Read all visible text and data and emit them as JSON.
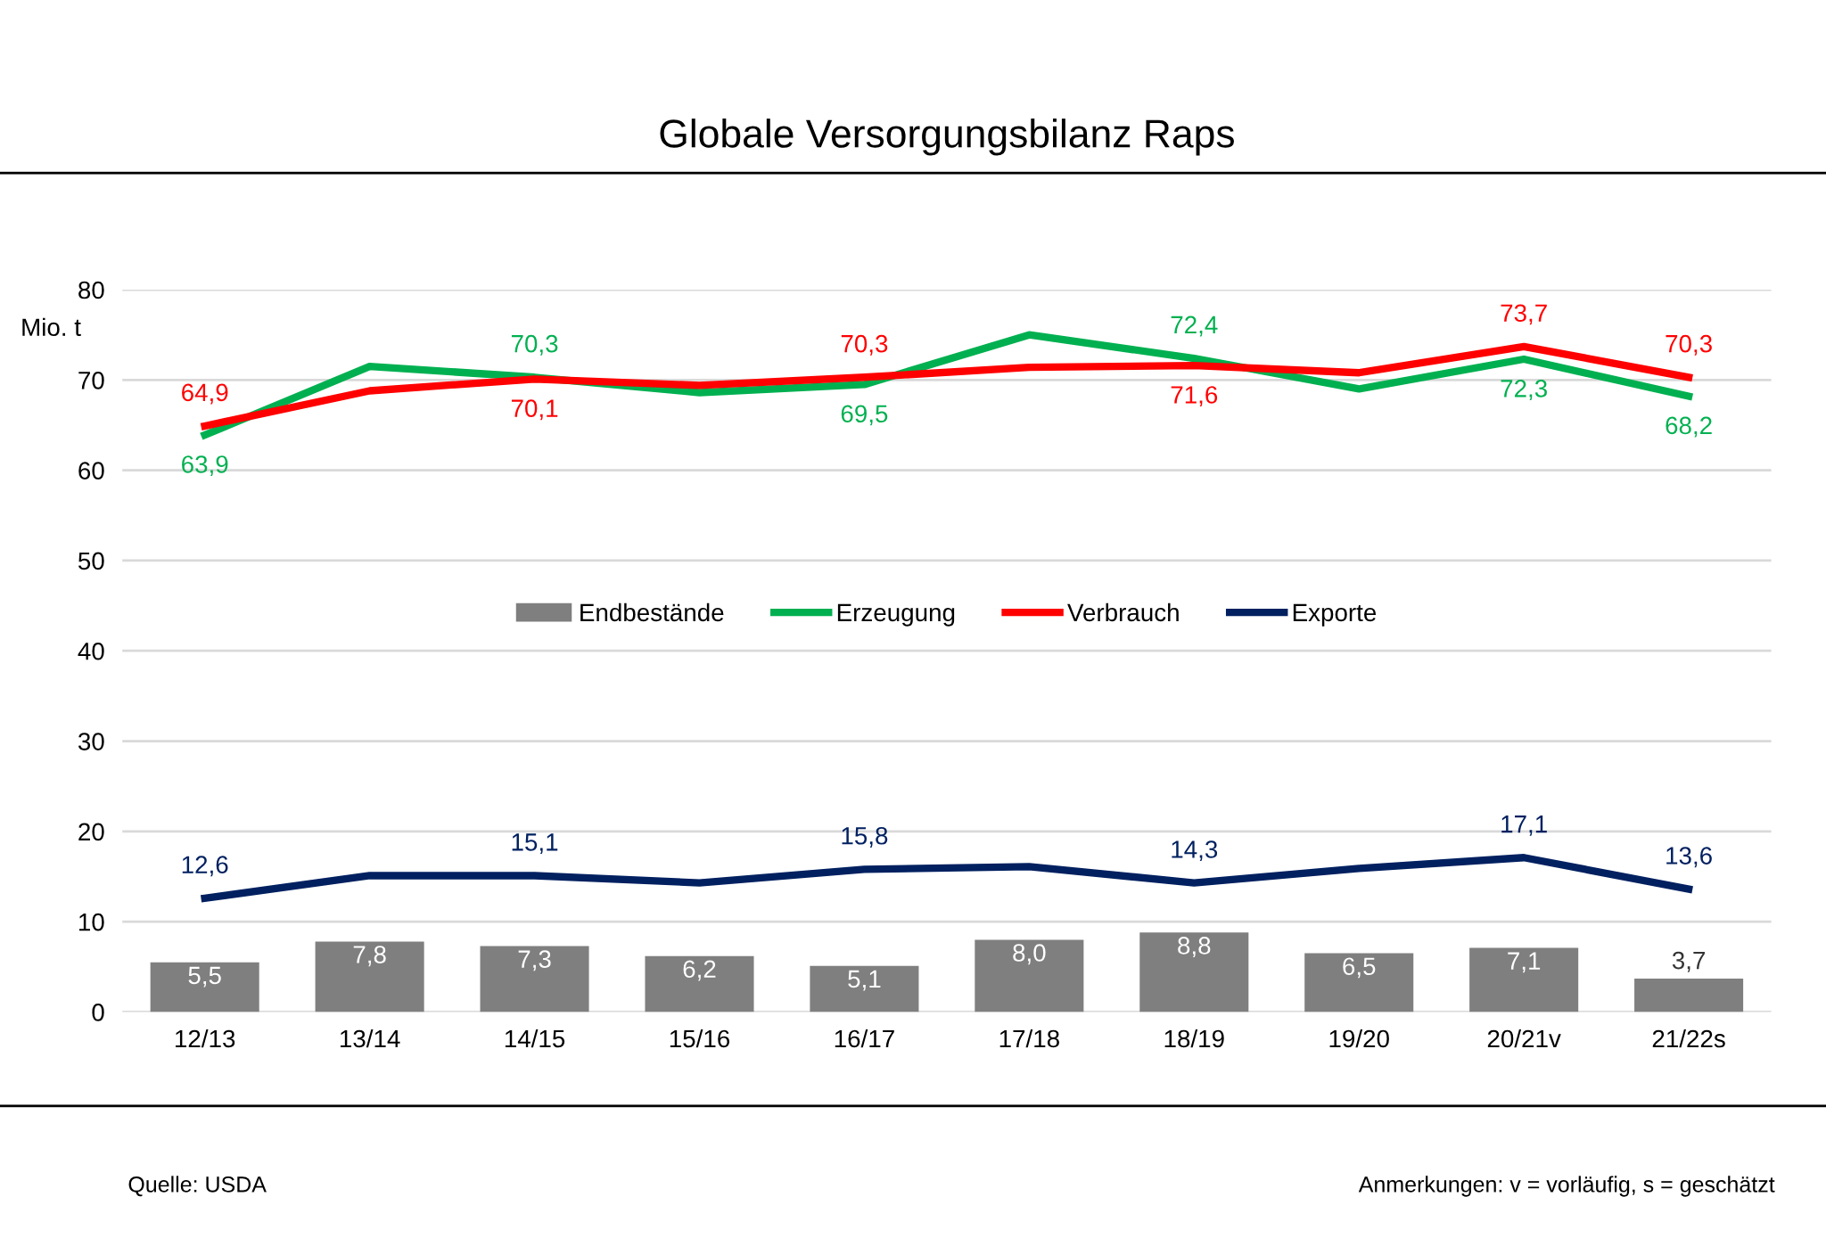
{
  "chart_data": {
    "type": "line",
    "title": "Globale Versorgungsbilanz Raps",
    "ylabel": "Mio. t",
    "categories": [
      "12/13",
      "13/14",
      "14/15",
      "15/16",
      "16/17",
      "17/18",
      "18/19",
      "19/20",
      "20/21v",
      "21/22s"
    ],
    "series": [
      {
        "name": "Endbestände",
        "type": "bar",
        "color": "#7f7f7f",
        "values": [
          5.5,
          7.8,
          7.3,
          6.2,
          5.1,
          8.0,
          8.8,
          6.5,
          7.1,
          3.7
        ],
        "value_labels": [
          "5,5",
          "7,8",
          "7,3",
          "6,2",
          "5,1",
          "8,0",
          "8,8",
          "6,5",
          "7,1",
          "3,7"
        ]
      },
      {
        "name": "Erzeugung",
        "color": "#00b050",
        "values": [
          63.9,
          71.5,
          70.3,
          68.6,
          69.5,
          75.0,
          72.4,
          69.0,
          72.3,
          68.2
        ],
        "value_labels": [
          "63,9",
          null,
          "70,3",
          null,
          "69,5",
          null,
          "72,4",
          null,
          "72,3",
          "68,2"
        ]
      },
      {
        "name": "Verbrauch",
        "color": "#ff0000",
        "values": [
          64.9,
          68.8,
          70.1,
          69.4,
          70.3,
          71.4,
          71.6,
          70.8,
          73.7,
          70.3
        ],
        "value_labels": [
          "64,9",
          null,
          "70,1",
          null,
          "70,3",
          null,
          "71,6",
          null,
          "73,7",
          "70,3"
        ]
      },
      {
        "name": "Exporte",
        "color": "#002060",
        "values": [
          12.6,
          15.1,
          15.1,
          14.3,
          15.8,
          16.1,
          14.3,
          15.9,
          17.1,
          13.6
        ],
        "value_labels": [
          "12,6",
          null,
          "15,1",
          null,
          "15,8",
          null,
          "14,3",
          null,
          "17,1",
          "13,6"
        ]
      }
    ],
    "ylim": [
      0,
      80
    ],
    "yticks": [
      0,
      10,
      20,
      30,
      40,
      50,
      60,
      70,
      80
    ],
    "grid": "y",
    "legend": "center",
    "marker": "none",
    "line_style": "solid",
    "annotations": [
      "Quelle: USDA",
      "Anmerkungen: v = vorläufig, s = geschätzt"
    ]
  }
}
